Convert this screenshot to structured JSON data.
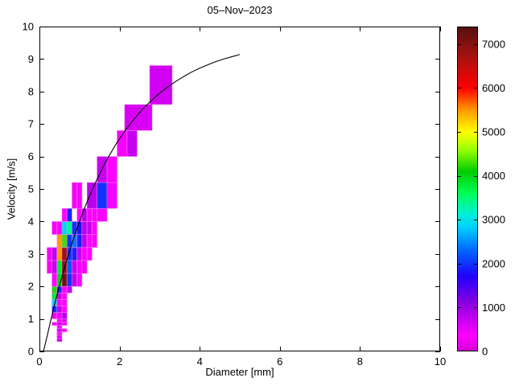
{
  "figure": {
    "background": "#ffffff",
    "frame_color": "#000000",
    "curve_color": "#000000",
    "cell_edge_color": "#ff82ff"
  },
  "chart_data": {
    "type": "heatmap",
    "title": "05–Nov–2023",
    "xlabel": "Diameter [mm]",
    "ylabel": "Velocity [m/s]",
    "xlim": [
      0,
      10
    ],
    "ylim": [
      0,
      10
    ],
    "xticks": [
      0,
      2,
      4,
      6,
      8,
      10
    ],
    "yticks": [
      0,
      1,
      2,
      3,
      4,
      5,
      6,
      7,
      8,
      9,
      10
    ],
    "grid": false,
    "colorbar": {
      "min": 0,
      "max": 7400,
      "ticks": [
        0,
        1000,
        2000,
        3000,
        4000,
        5000,
        6000,
        7000
      ],
      "position": "right"
    },
    "colormap": [
      [
        0,
        "#d400d4"
      ],
      [
        350,
        "#ff00ff"
      ],
      [
        1100,
        "#8a00e0"
      ],
      [
        1700,
        "#2200ff"
      ],
      [
        2300,
        "#0066ff"
      ],
      [
        2800,
        "#00ccff"
      ],
      [
        3100,
        "#00eedd"
      ],
      [
        3600,
        "#00ff55"
      ],
      [
        4100,
        "#00cc00"
      ],
      [
        4600,
        "#99ff00"
      ],
      [
        5000,
        "#ffff00"
      ],
      [
        5500,
        "#ff9900"
      ],
      [
        6000,
        "#ff0000"
      ],
      [
        6700,
        "#aa1111"
      ],
      [
        7400,
        "#551010"
      ]
    ],
    "cells_format": [
      "d_min",
      "d_max",
      "v_min",
      "v_max",
      "count"
    ],
    "cells": [
      [
        0.4375,
        0.5625,
        0.3,
        0.4,
        650
      ],
      [
        0.4375,
        0.5625,
        0.4,
        0.5,
        600
      ],
      [
        0.4375,
        0.5625,
        0.5,
        0.6,
        350
      ],
      [
        0.4375,
        0.5625,
        0.6,
        0.7,
        700
      ],
      [
        0.5625,
        0.6875,
        0.6,
        0.7,
        300
      ],
      [
        0.4375,
        0.5625,
        0.7,
        0.8,
        350
      ],
      [
        0.3125,
        0.4375,
        0.8,
        0.9,
        300
      ],
      [
        0.4375,
        0.5625,
        0.8,
        0.9,
        700
      ],
      [
        0.5625,
        0.6875,
        0.8,
        0.9,
        300
      ],
      [
        0.4375,
        0.5625,
        0.9,
        1.0,
        400
      ],
      [
        0.5625,
        0.6875,
        0.9,
        1.0,
        600
      ],
      [
        0.3125,
        0.4375,
        1.0,
        1.2,
        300
      ],
      [
        0.4375,
        0.5625,
        1.0,
        1.2,
        500
      ],
      [
        0.5625,
        0.6875,
        1.0,
        1.2,
        800
      ],
      [
        0.3125,
        0.4375,
        1.2,
        1.4,
        2000
      ],
      [
        0.4375,
        0.5625,
        1.2,
        1.4,
        800
      ],
      [
        0.5625,
        0.6875,
        1.2,
        1.4,
        350
      ],
      [
        0.3125,
        0.4375,
        1.4,
        1.6,
        2800
      ],
      [
        0.4375,
        0.5625,
        1.4,
        1.6,
        400
      ],
      [
        0.5625,
        0.6875,
        1.4,
        1.6,
        300
      ],
      [
        0.3125,
        0.4375,
        1.6,
        1.8,
        3800
      ],
      [
        0.4375,
        0.5625,
        1.6,
        1.8,
        700
      ],
      [
        0.5625,
        0.6875,
        1.6,
        1.8,
        300
      ],
      [
        0.3125,
        0.4375,
        1.8,
        2.0,
        4200
      ],
      [
        0.4375,
        0.5625,
        1.8,
        2.0,
        2000
      ],
      [
        0.5625,
        0.6875,
        1.8,
        2.0,
        350
      ],
      [
        0.6875,
        0.8125,
        1.8,
        2.0,
        700
      ],
      [
        0.3125,
        0.4375,
        2.0,
        2.4,
        350
      ],
      [
        0.4375,
        0.5625,
        2.0,
        2.4,
        4000
      ],
      [
        0.5625,
        0.6875,
        2.0,
        2.4,
        7200
      ],
      [
        0.6875,
        0.8125,
        2.0,
        2.4,
        2000
      ],
      [
        0.8125,
        0.9375,
        2.0,
        2.4,
        800
      ],
      [
        0.9375,
        1.0625,
        2.0,
        2.4,
        350
      ],
      [
        0.1875,
        0.3125,
        2.4,
        2.8,
        300
      ],
      [
        0.3125,
        0.4375,
        2.4,
        2.8,
        700
      ],
      [
        0.4375,
        0.5625,
        2.4,
        2.8,
        3800
      ],
      [
        0.5625,
        0.6875,
        2.4,
        2.8,
        7000
      ],
      [
        0.6875,
        0.8125,
        2.4,
        2.8,
        2200
      ],
      [
        0.8125,
        0.9375,
        2.4,
        2.8,
        700
      ],
      [
        0.9375,
        1.0625,
        2.4,
        2.8,
        400
      ],
      [
        1.0625,
        1.1875,
        2.4,
        2.8,
        300
      ],
      [
        0.1875,
        0.3125,
        2.8,
        3.2,
        300
      ],
      [
        0.3125,
        0.4375,
        2.8,
        3.2,
        800
      ],
      [
        0.4375,
        0.5625,
        2.8,
        3.2,
        5500
      ],
      [
        0.5625,
        0.6875,
        2.8,
        3.2,
        6800
      ],
      [
        0.6875,
        0.8125,
        2.8,
        3.2,
        2000
      ],
      [
        0.8125,
        0.9375,
        2.8,
        3.2,
        1900
      ],
      [
        0.9375,
        1.0625,
        2.8,
        3.2,
        700
      ],
      [
        1.0625,
        1.1875,
        2.8,
        3.2,
        400
      ],
      [
        1.1875,
        1.3125,
        2.8,
        3.2,
        350
      ],
      [
        0.4375,
        0.5625,
        3.2,
        3.6,
        5500
      ],
      [
        0.5625,
        0.6875,
        3.2,
        3.6,
        4300
      ],
      [
        0.6875,
        0.8125,
        3.2,
        3.6,
        2000
      ],
      [
        0.8125,
        0.9375,
        3.2,
        3.6,
        2400
      ],
      [
        0.9375,
        1.0625,
        3.2,
        3.6,
        1900
      ],
      [
        1.0625,
        1.1875,
        3.2,
        3.6,
        800
      ],
      [
        1.1875,
        1.3125,
        3.2,
        3.6,
        350
      ],
      [
        1.3125,
        1.4375,
        3.2,
        3.6,
        300
      ],
      [
        0.3125,
        0.4375,
        3.6,
        4.0,
        300
      ],
      [
        0.4375,
        0.5625,
        3.6,
        4.0,
        400
      ],
      [
        0.5625,
        0.6875,
        3.6,
        4.0,
        2900
      ],
      [
        0.6875,
        0.8125,
        3.6,
        4.0,
        3400
      ],
      [
        0.8125,
        0.9375,
        3.6,
        4.0,
        2000
      ],
      [
        0.9375,
        1.0625,
        3.6,
        4.0,
        1800
      ],
      [
        1.0625,
        1.1875,
        3.6,
        4.0,
        800
      ],
      [
        1.1875,
        1.3125,
        3.6,
        4.0,
        700
      ],
      [
        1.3125,
        1.4375,
        3.6,
        4.0,
        350
      ],
      [
        0.5625,
        0.6875,
        4.0,
        4.4,
        350
      ],
      [
        0.6875,
        0.8125,
        4.0,
        4.4,
        1900
      ],
      [
        0.9375,
        1.0625,
        4.0,
        4.4,
        350
      ],
      [
        1.0625,
        1.1875,
        4.0,
        4.4,
        800
      ],
      [
        1.1875,
        1.3125,
        4.0,
        4.4,
        350
      ],
      [
        1.3125,
        1.4375,
        4.0,
        4.4,
        300
      ],
      [
        1.4375,
        1.6875,
        4.0,
        4.4,
        400
      ],
      [
        0.8125,
        0.9375,
        4.4,
        5.2,
        300
      ],
      [
        0.9375,
        1.0625,
        4.4,
        5.2,
        400
      ],
      [
        1.1875,
        1.4375,
        4.4,
        5.2,
        800
      ],
      [
        1.4375,
        1.6875,
        4.4,
        5.2,
        2000
      ],
      [
        1.6875,
        1.9375,
        4.4,
        5.2,
        400
      ],
      [
        1.4375,
        1.6875,
        5.2,
        6.0,
        700
      ],
      [
        1.6875,
        1.9375,
        5.2,
        6.0,
        350
      ],
      [
        1.9375,
        2.1875,
        6.0,
        6.8,
        400
      ],
      [
        2.1875,
        2.4375,
        6.0,
        6.8,
        700
      ],
      [
        2.125,
        2.8125,
        6.8,
        7.6,
        600
      ],
      [
        2.75,
        3.3125,
        7.6,
        8.8,
        650
      ]
    ],
    "curve": {
      "name": "terminal-fall-velocity-curve",
      "d": [
        0.1,
        0.2,
        0.3,
        0.4,
        0.5,
        0.6,
        0.7,
        0.8,
        0.9,
        1.0,
        1.1,
        1.2,
        1.3,
        1.4,
        1.5,
        1.6,
        1.7,
        1.8,
        1.9,
        2.0,
        2.2,
        2.4,
        2.6,
        2.8,
        3.0,
        3.2,
        3.4,
        3.6,
        3.8,
        4.0,
        4.2,
        4.4,
        4.6,
        4.8,
        5.0
      ],
      "v": [
        0.0,
        0.51,
        1.05,
        1.55,
        2.02,
        2.46,
        2.88,
        3.28,
        3.65,
        4.0,
        4.33,
        4.64,
        4.93,
        5.2,
        5.46,
        5.71,
        5.94,
        6.15,
        6.36,
        6.55,
        6.9,
        7.21,
        7.49,
        7.73,
        7.95,
        8.14,
        8.31,
        8.46,
        8.6,
        8.72,
        8.82,
        8.92,
        9.0,
        9.07,
        9.14
      ]
    }
  }
}
